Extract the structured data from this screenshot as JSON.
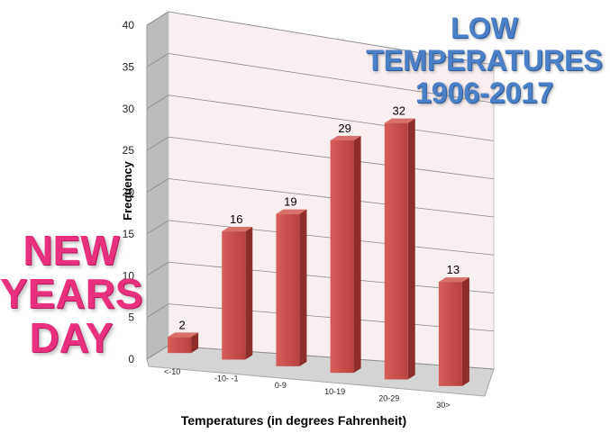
{
  "chart_data": {
    "type": "bar",
    "categories": [
      "<-10",
      "-10- -1",
      "0-9",
      "10-19",
      "20-29",
      "30>"
    ],
    "values": [
      2,
      16,
      19,
      29,
      32,
      13
    ],
    "data_labels": [
      "2",
      "16",
      "19",
      "29",
      "32",
      "13"
    ],
    "y_ticks": [
      "0",
      "5",
      "10",
      "15",
      "20",
      "25",
      "30",
      "35",
      "40"
    ],
    "ylim": [
      0,
      40
    ],
    "xlabel": "Temperatures (in degrees Fahrenheit)",
    "ylabel": "Frequency",
    "grid": true,
    "style": "3d-perspective",
    "bar_color": "#c0504d",
    "wall_color": "#f9eef0"
  },
  "overlay": {
    "low_title_line1": "LOW",
    "low_title_line2": "TEMPERATURES",
    "low_title_line3": "1906-2017",
    "new_years_line1": "NEW",
    "new_years_line2": "YEARS",
    "new_years_line3": "DAY",
    "low_title_color": "#4b7fc6",
    "new_years_color": "#e8307f"
  }
}
